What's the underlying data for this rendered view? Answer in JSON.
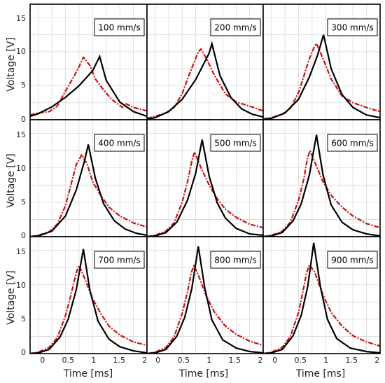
{
  "colors": {
    "model_line": "#000000",
    "measured_line": "#cc1111",
    "grid": "#d9d9d9",
    "frame": "#000000",
    "background": "#ffffff"
  },
  "axes": {
    "xlabel": "Time [ms]",
    "ylabel": "Voltage [V]",
    "x_ticks": [
      "0",
      "0.5",
      "1",
      "1.5",
      "2"
    ],
    "y_ticks": [
      "0",
      "5",
      "10",
      "15"
    ]
  },
  "chart_data": {
    "type": "line",
    "layout": "3x3 grid of panels with shared axes",
    "xlabel": "Time [ms]",
    "ylabel": "Voltage [V]",
    "xlim": [
      -0.15,
      2.0
    ],
    "ylim": [
      0,
      17
    ],
    "x_ticks": [
      0,
      0.5,
      1,
      1.5,
      2
    ],
    "y_ticks": [
      0,
      5,
      10,
      15
    ],
    "grid": true,
    "series_styles": {
      "model": "solid black line",
      "measured": "dash-dot red line"
    },
    "panels": [
      {
        "label": "100 mm/s",
        "model_peak": {
          "x": 1.13,
          "y": 9.3
        },
        "measured_peak": {
          "x": 0.83,
          "y": 9.2
        },
        "model": {
          "x": [
            -0.15,
            0.0,
            0.25,
            0.5,
            0.75,
            1.0,
            1.13,
            1.25,
            1.5,
            1.75,
            2.0
          ],
          "y": [
            0.5,
            0.9,
            1.9,
            3.3,
            5.0,
            7.2,
            9.3,
            5.8,
            2.6,
            1.2,
            0.5
          ]
        },
        "measured": {
          "x": [
            -0.15,
            0.0,
            0.2,
            0.35,
            0.5,
            0.65,
            0.75,
            0.83,
            0.95,
            1.05,
            1.2,
            1.35,
            1.5,
            1.55,
            1.6,
            1.75,
            2.0
          ],
          "y": [
            0.7,
            1.0,
            1.2,
            2.0,
            4.2,
            6.3,
            7.8,
            9.2,
            8.0,
            6.0,
            4.4,
            3.0,
            2.1,
            1.8,
            2.4,
            1.8,
            1.3
          ]
        }
      },
      {
        "label": "200 mm/s",
        "model_peak": {
          "x": 1.05,
          "y": 11.2
        },
        "measured_peak": {
          "x": 0.85,
          "y": 10.4
        },
        "model": {
          "x": [
            -0.15,
            0.0,
            0.25,
            0.5,
            0.75,
            1.0,
            1.05,
            1.2,
            1.4,
            1.6,
            1.8,
            2.0
          ],
          "y": [
            0.1,
            0.3,
            1.2,
            3.0,
            5.9,
            9.8,
            11.2,
            6.5,
            3.3,
            1.6,
            0.8,
            0.4
          ]
        },
        "measured": {
          "x": [
            -0.15,
            0.0,
            0.2,
            0.35,
            0.5,
            0.6,
            0.7,
            0.8,
            0.85,
            0.95,
            1.1,
            1.3,
            1.5,
            1.75,
            2.0
          ],
          "y": [
            0.2,
            0.5,
            1.0,
            1.8,
            3.8,
            6.0,
            8.0,
            10.0,
            10.4,
            9.0,
            6.5,
            3.8,
            2.6,
            2.0,
            1.3
          ]
        }
      },
      {
        "label": "300 mm/s",
        "model_peak": {
          "x": 0.96,
          "y": 12.5
        },
        "measured_peak": {
          "x": 0.83,
          "y": 11.2
        },
        "model": {
          "x": [
            -0.15,
            0.0,
            0.25,
            0.5,
            0.7,
            0.85,
            0.96,
            1.1,
            1.3,
            1.5,
            1.75,
            2.0
          ],
          "y": [
            0.05,
            0.2,
            1.0,
            3.0,
            6.3,
            9.5,
            12.5,
            7.5,
            3.7,
            1.8,
            0.7,
            0.3
          ]
        },
        "measured": {
          "x": [
            -0.15,
            0.0,
            0.2,
            0.35,
            0.5,
            0.6,
            0.7,
            0.8,
            0.83,
            0.95,
            1.1,
            1.3,
            1.5,
            1.75,
            2.0
          ],
          "y": [
            0.1,
            0.3,
            0.8,
            1.7,
            4.0,
            6.5,
            9.0,
            10.9,
            11.2,
            9.0,
            6.0,
            3.5,
            2.5,
            1.8,
            1.2
          ]
        }
      },
      {
        "label": "400 mm/s",
        "model_peak": {
          "x": 0.92,
          "y": 13.4
        },
        "measured_peak": {
          "x": 0.8,
          "y": 11.9
        },
        "model": {
          "x": [
            -0.15,
            0.0,
            0.25,
            0.5,
            0.7,
            0.85,
            0.92,
            1.05,
            1.2,
            1.4,
            1.6,
            1.8,
            2.0
          ],
          "y": [
            0.0,
            0.1,
            0.8,
            3.0,
            6.8,
            11.0,
            13.4,
            8.5,
            4.8,
            2.3,
            1.1,
            0.5,
            0.2
          ]
        },
        "measured": {
          "x": [
            -0.15,
            0.0,
            0.2,
            0.35,
            0.5,
            0.6,
            0.7,
            0.8,
            0.9,
            1.0,
            1.15,
            1.3,
            1.5,
            1.75,
            2.0
          ],
          "y": [
            0.0,
            0.2,
            0.7,
            1.8,
            4.5,
            7.5,
            10.5,
            11.9,
            10.5,
            8.0,
            6.0,
            4.3,
            3.0,
            2.0,
            1.4
          ]
        }
      },
      {
        "label": "500 mm/s",
        "model_peak": {
          "x": 0.87,
          "y": 14.1
        },
        "measured_peak": {
          "x": 0.73,
          "y": 12.3
        },
        "model": {
          "x": [
            -0.15,
            0.0,
            0.2,
            0.4,
            0.6,
            0.75,
            0.87,
            1.0,
            1.15,
            1.3,
            1.5,
            1.75,
            2.0
          ],
          "y": [
            0.0,
            0.1,
            0.6,
            2.1,
            5.3,
            9.2,
            14.1,
            8.8,
            4.9,
            2.7,
            1.2,
            0.4,
            0.2
          ]
        },
        "measured": {
          "x": [
            -0.15,
            0.0,
            0.2,
            0.35,
            0.5,
            0.6,
            0.68,
            0.73,
            0.85,
            1.0,
            1.15,
            1.3,
            1.5,
            1.75,
            2.0
          ],
          "y": [
            0.0,
            0.2,
            0.8,
            2.0,
            5.0,
            8.0,
            11.0,
            12.3,
            10.0,
            7.5,
            5.5,
            4.0,
            2.8,
            1.8,
            1.3
          ]
        }
      },
      {
        "label": "600 mm/s",
        "model_peak": {
          "x": 0.83,
          "y": 14.8
        },
        "measured_peak": {
          "x": 0.71,
          "y": 12.5
        },
        "model": {
          "x": [
            -0.15,
            0.0,
            0.2,
            0.4,
            0.55,
            0.7,
            0.83,
            0.95,
            1.1,
            1.3,
            1.5,
            1.75,
            2.0
          ],
          "y": [
            0.0,
            0.1,
            0.6,
            2.3,
            4.8,
            9.0,
            14.8,
            9.0,
            4.6,
            2.1,
            1.0,
            0.4,
            0.1
          ]
        },
        "measured": {
          "x": [
            -0.15,
            0.0,
            0.2,
            0.35,
            0.5,
            0.6,
            0.66,
            0.71,
            0.8,
            0.95,
            1.1,
            1.3,
            1.5,
            1.75,
            2.0
          ],
          "y": [
            0.0,
            0.2,
            0.8,
            2.1,
            5.3,
            8.5,
            11.3,
            12.5,
            10.8,
            8.0,
            6.0,
            4.3,
            3.0,
            1.9,
            1.3
          ]
        }
      },
      {
        "label": "700 mm/s",
        "model_peak": {
          "x": 0.83,
          "y": 15.2
        },
        "measured_peak": {
          "x": 0.75,
          "y": 12.8
        },
        "model": {
          "x": [
            -0.15,
            0.0,
            0.2,
            0.4,
            0.55,
            0.7,
            0.83,
            0.95,
            1.1,
            1.3,
            1.5,
            1.75,
            2.0
          ],
          "y": [
            0.0,
            0.1,
            0.6,
            2.4,
            5.0,
            9.3,
            15.2,
            9.2,
            4.7,
            2.1,
            1.0,
            0.4,
            0.1
          ]
        },
        "measured": {
          "x": [
            -0.15,
            0.0,
            0.2,
            0.35,
            0.5,
            0.6,
            0.7,
            0.75,
            0.85,
            1.0,
            1.15,
            1.3,
            1.5,
            1.75,
            2.0
          ],
          "y": [
            0.0,
            0.2,
            0.9,
            2.3,
            5.5,
            8.5,
            11.8,
            12.8,
            11.0,
            8.0,
            5.8,
            4.0,
            2.7,
            1.7,
            1.2
          ]
        }
      },
      {
        "label": "800 mm/s",
        "model_peak": {
          "x": 0.8,
          "y": 15.6
        },
        "measured_peak": {
          "x": 0.72,
          "y": 12.8
        },
        "model": {
          "x": [
            -0.15,
            0.0,
            0.2,
            0.4,
            0.55,
            0.68,
            0.8,
            0.92,
            1.05,
            1.25,
            1.5,
            1.75,
            2.0
          ],
          "y": [
            0.0,
            0.1,
            0.6,
            2.5,
            5.3,
            9.5,
            15.6,
            9.5,
            4.9,
            2.0,
            0.8,
            0.3,
            0.1
          ]
        },
        "measured": {
          "x": [
            -0.15,
            0.0,
            0.2,
            0.35,
            0.5,
            0.6,
            0.67,
            0.72,
            0.82,
            0.95,
            1.1,
            1.3,
            1.5,
            1.75,
            2.0
          ],
          "y": [
            0.0,
            0.2,
            0.9,
            2.4,
            5.8,
            9.0,
            11.8,
            12.8,
            11.0,
            8.3,
            6.0,
            4.0,
            2.8,
            1.8,
            1.2
          ]
        }
      },
      {
        "label": "900 mm/s",
        "model_peak": {
          "x": 0.78,
          "y": 16.1
        },
        "measured_peak": {
          "x": 0.7,
          "y": 12.9
        },
        "model": {
          "x": [
            -0.15,
            0.0,
            0.2,
            0.4,
            0.55,
            0.67,
            0.78,
            0.9,
            1.03,
            1.2,
            1.45,
            1.75,
            2.0
          ],
          "y": [
            0.0,
            0.1,
            0.6,
            2.6,
            5.6,
            9.8,
            16.1,
            9.8,
            5.0,
            2.2,
            0.8,
            0.3,
            0.1
          ]
        },
        "measured": {
          "x": [
            -0.15,
            0.0,
            0.2,
            0.35,
            0.5,
            0.58,
            0.65,
            0.7,
            0.8,
            0.95,
            1.1,
            1.3,
            1.5,
            1.75,
            2.0
          ],
          "y": [
            0.0,
            0.2,
            0.9,
            2.5,
            6.0,
            9.0,
            11.8,
            12.9,
            11.8,
            8.5,
            6.0,
            4.0,
            2.6,
            1.7,
            1.1
          ]
        }
      }
    ]
  }
}
